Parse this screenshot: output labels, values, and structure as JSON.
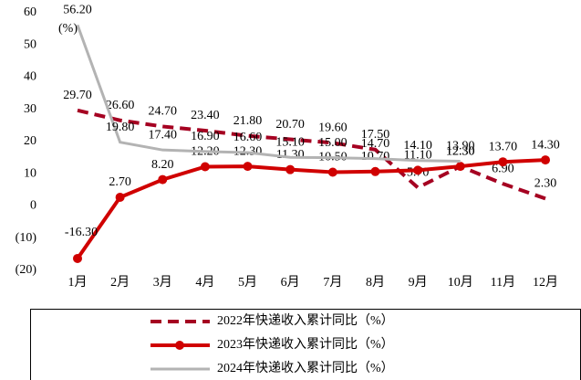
{
  "chart_data": {
    "type": "line",
    "annotation": "(%)",
    "categories": [
      "1月",
      "2月",
      "3月",
      "4月",
      "5月",
      "6月",
      "7月",
      "8月",
      "9月",
      "10月",
      "11月",
      "12月"
    ],
    "ylim": [
      -20,
      60
    ],
    "yticks": [
      {
        "value": -20,
        "label": "(20)"
      },
      {
        "value": -10,
        "label": "(10)"
      },
      0,
      10,
      20,
      30,
      40,
      50,
      60
    ],
    "negative_tick_color": "#ff0000",
    "legend_position": "bottom",
    "series": [
      {
        "name": "2022年快递收入累计同比（%）",
        "color": "#a50021",
        "style": "dashed",
        "values": [
          29.7,
          26.6,
          24.7,
          23.4,
          21.8,
          20.7,
          19.6,
          17.5,
          5.7,
          12.3,
          6.9,
          2.3
        ],
        "value_labels": [
          "29.70",
          "26.60",
          "24.70",
          "23.40",
          "21.80",
          "20.70",
          "19.60",
          "17.50",
          "5.70",
          "12.30",
          "6.90",
          "2.30"
        ]
      },
      {
        "name": "2023年快递收入累计同比（%）",
        "color": "#d00000",
        "style": "solid-marker",
        "values": [
          -16.3,
          2.7,
          8.2,
          12.2,
          12.3,
          11.3,
          10.5,
          10.7,
          11.1,
          12.3,
          13.7,
          14.3
        ],
        "value_labels": [
          "-16.30",
          "2.70",
          "8.20",
          "12.20",
          "12.30",
          "11.30",
          "10.50",
          "10.70",
          "11.10",
          "12.30",
          "13.70",
          "14.30"
        ]
      },
      {
        "name": "2024年快递收入累计同比（%）",
        "color": "#b3b3b3",
        "style": "solid",
        "values": [
          56.2,
          19.8,
          17.4,
          16.9,
          16.6,
          15.1,
          15.0,
          14.7,
          14.1,
          13.9,
          null,
          null
        ],
        "value_labels": [
          "56.20",
          "19.80",
          "17.40",
          "16.90",
          "16.60",
          "15.10",
          "15.00",
          "14.70",
          "14.10",
          "13.90",
          null,
          null
        ]
      }
    ]
  }
}
